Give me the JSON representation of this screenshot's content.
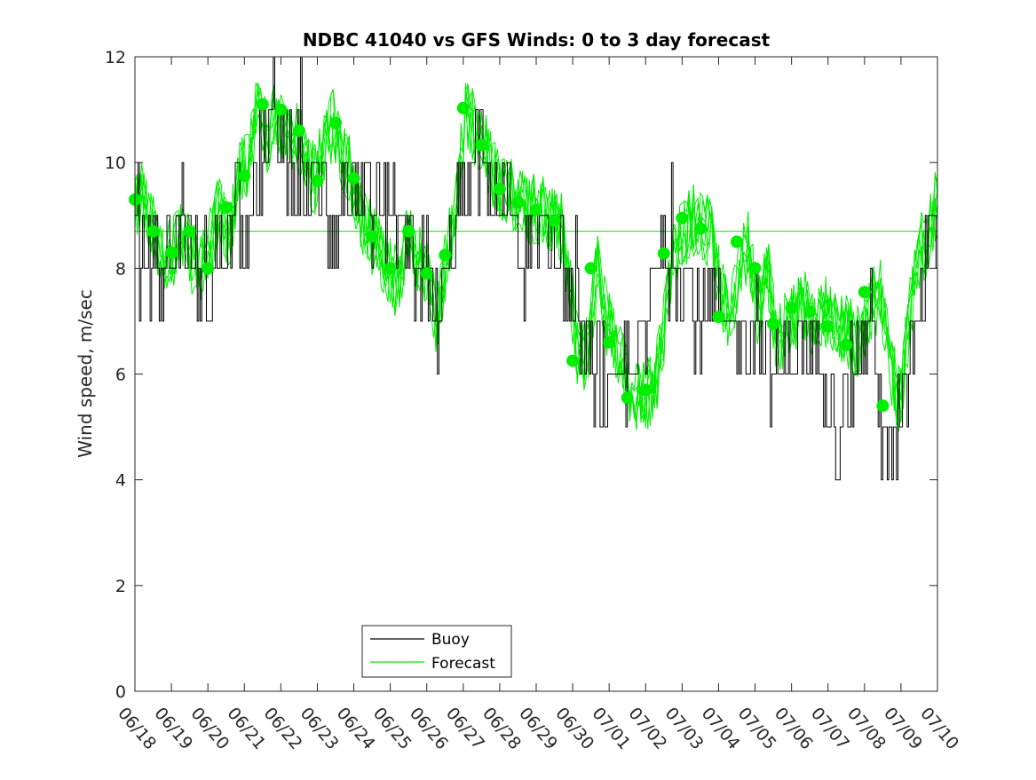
{
  "chart_data": {
    "type": "line",
    "title": "NDBC 41040 vs GFS Winds: 0 to 3 day forecast",
    "ylabel": "Wind speed, m/sec",
    "xlabel": "",
    "ylim": [
      0,
      12
    ],
    "yticks": [
      0,
      2,
      4,
      6,
      8,
      10,
      12
    ],
    "x_range_days": [
      0,
      22
    ],
    "xtick_labels": [
      "06/18",
      "06/19",
      "06/20",
      "06/21",
      "06/22",
      "06/23",
      "06/24",
      "06/25",
      "06/26",
      "06/27",
      "06/28",
      "06/29",
      "06/30",
      "07/01",
      "07/02",
      "07/03",
      "07/04",
      "07/05",
      "07/06",
      "07/07",
      "07/08",
      "07/09",
      "07/10"
    ],
    "legend": {
      "position": "bottom-center",
      "entries": [
        "Buoy",
        "Forecast"
      ]
    },
    "colors": {
      "buoy": "#000000",
      "forecast": "#00ee00",
      "forecast_markers": "#00ee00"
    },
    "mean_forecast_line": 8.7,
    "series": [
      {
        "name": "Buoy",
        "x": [
          0,
          0.25,
          0.5,
          0.75,
          1,
          1.25,
          1.5,
          1.75,
          2,
          2.25,
          2.5,
          2.75,
          3,
          3.25,
          3.5,
          3.75,
          4,
          4.25,
          4.5,
          4.75,
          5,
          5.25,
          5.5,
          5.75,
          6,
          6.25,
          6.5,
          6.75,
          7,
          7.25,
          7.5,
          7.75,
          8,
          8.25,
          8.5,
          8.75,
          9,
          9.25,
          9.5,
          9.75,
          10,
          10.25,
          10.5,
          10.75,
          11,
          11.25,
          11.5,
          11.75,
          12,
          12.25,
          12.5,
          12.75,
          13,
          13.25,
          13.5,
          13.75,
          14,
          14.25,
          14.5,
          14.75,
          15,
          15.25,
          15.5,
          15.75,
          16,
          16.25,
          16.5,
          16.75,
          17,
          17.25,
          17.5,
          17.75,
          18,
          18.25,
          18.5,
          18.75,
          19,
          19.25,
          19.5,
          19.75,
          20,
          20.25,
          20.5,
          20.75,
          21,
          21.25,
          21.5,
          21.75,
          22
        ],
        "values": [
          9,
          8,
          8.5,
          8,
          8,
          9,
          8.5,
          7.5,
          8,
          8,
          8.5,
          9,
          9,
          9.5,
          10,
          11,
          10.5,
          10,
          10,
          9.5,
          9.5,
          9,
          9,
          9.5,
          9.5,
          9.5,
          9,
          9,
          8.5,
          9,
          8,
          8,
          8,
          7,
          7.5,
          9,
          9,
          10,
          10,
          9.5,
          9,
          9,
          8,
          8,
          8.5,
          9,
          8.5,
          8,
          7,
          6.5,
          6,
          6,
          5.5,
          5.5,
          6,
          6.5,
          6.5,
          8,
          8.5,
          8,
          8,
          7.5,
          7,
          7,
          7,
          6.5,
          6.5,
          7,
          7,
          7,
          6,
          6,
          6.5,
          6.5,
          6,
          6.5,
          6,
          5,
          5.5,
          6,
          6.5,
          7,
          4.5,
          4.5,
          5,
          6.5,
          7,
          9,
          8.5
        ]
      },
      {
        "name": "Forecast",
        "markers_x": [
          0,
          0.5,
          1,
          1.5,
          2,
          2.5,
          3,
          3.5,
          4,
          4.5,
          5,
          5.5,
          6,
          6.5,
          7,
          7.5,
          8,
          8.5,
          9,
          9.5,
          10,
          10.5,
          11,
          11.5,
          12,
          12.5,
          13,
          13.5,
          14,
          14.5,
          15,
          15.5,
          16,
          16.5,
          17,
          17.5,
          18,
          18.5,
          19,
          19.5,
          20,
          20.5,
          21
        ],
        "markers_y": [
          9.3,
          8.7,
          8.3,
          8.7,
          8.0,
          9.15,
          9.75,
          11.1,
          11.0,
          10.6,
          9.65,
          10.75,
          9.7,
          8.6,
          8.0,
          8.7,
          7.9,
          8.25,
          11.03,
          10.33,
          9.5,
          9.25,
          9.1,
          8.9,
          6.25,
          8.0,
          6.6,
          5.55,
          5.7,
          8.28,
          8.95,
          8.75,
          7.08,
          8.5,
          8.0,
          6.95,
          7.25,
          7.18,
          6.9,
          6.55,
          7.55,
          5.4,
          null
        ],
        "values": [
          9.3,
          9.3,
          8.7,
          8.3,
          8.3,
          8.7,
          8.2,
          8.0,
          8.5,
          9.15,
          8.6,
          9.75,
          10.0,
          11.1,
          10.5,
          11.0,
          10.4,
          10.6,
          10.2,
          9.65,
          10.3,
          10.75,
          10.1,
          9.7,
          9.0,
          8.6,
          8.3,
          8.0,
          7.6,
          8.7,
          8.2,
          7.9,
          7.0,
          8.25,
          9.0,
          11.03,
          10.6,
          10.33,
          9.8,
          9.5,
          9.4,
          9.25,
          9.1,
          9.1,
          9.0,
          8.9,
          7.8,
          6.25,
          6.5,
          8.0,
          7.0,
          6.6,
          5.9,
          5.55,
          5.6,
          5.7,
          6.8,
          8.28,
          8.6,
          8.95,
          8.7,
          8.75,
          7.6,
          7.08,
          7.9,
          8.5,
          7.1,
          8.0,
          6.5,
          6.95,
          7.1,
          7.25,
          6.8,
          7.18,
          7.0,
          6.9,
          6.7,
          6.55,
          7.3,
          7.55,
          6.2,
          5.4,
          7.0,
          8.3,
          8.6,
          9.3
        ]
      }
    ]
  }
}
